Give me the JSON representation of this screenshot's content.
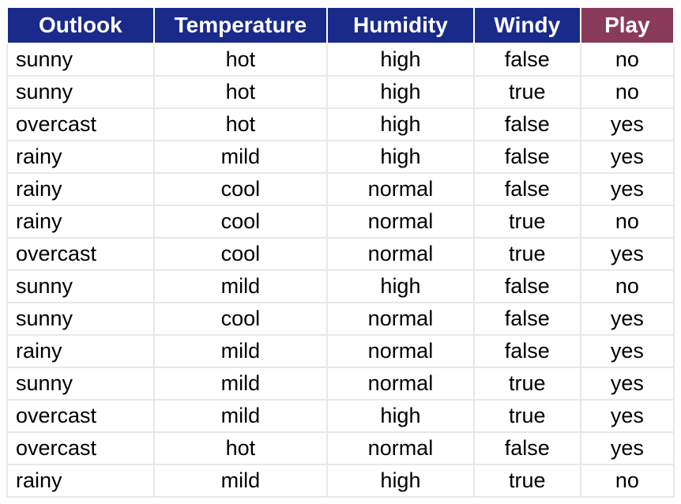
{
  "table": {
    "type": "table",
    "columns": [
      {
        "key": "outlook",
        "label": "Outlook",
        "header_bg": "#1a2a8a",
        "align": "left",
        "width_pct": 22
      },
      {
        "key": "temperature",
        "label": "Temperature",
        "header_bg": "#1a2a8a",
        "align": "center",
        "width_pct": 26
      },
      {
        "key": "humidity",
        "label": "Humidity",
        "header_bg": "#1a2a8a",
        "align": "center",
        "width_pct": 22
      },
      {
        "key": "windy",
        "label": "Windy",
        "header_bg": "#1a2a8a",
        "align": "center",
        "width_pct": 16
      },
      {
        "key": "play",
        "label": "Play",
        "header_bg": "#8a3a5a",
        "align": "center",
        "width_pct": 14
      }
    ],
    "rows": [
      [
        "sunny",
        "hot",
        "high",
        "false",
        "no"
      ],
      [
        "sunny",
        "hot",
        "high",
        "true",
        "no"
      ],
      [
        "overcast",
        "hot",
        "high",
        "false",
        "yes"
      ],
      [
        "rainy",
        "mild",
        "high",
        "false",
        "yes"
      ],
      [
        "rainy",
        "cool",
        "normal",
        "false",
        "yes"
      ],
      [
        "rainy",
        "cool",
        "normal",
        "true",
        "no"
      ],
      [
        "overcast",
        "cool",
        "normal",
        "true",
        "yes"
      ],
      [
        "sunny",
        "mild",
        "high",
        "false",
        "no"
      ],
      [
        "sunny",
        "cool",
        "normal",
        "false",
        "yes"
      ],
      [
        "rainy",
        "mild",
        "normal",
        "false",
        "yes"
      ],
      [
        "sunny",
        "mild",
        "normal",
        "true",
        "yes"
      ],
      [
        "overcast",
        "mild",
        "high",
        "true",
        "yes"
      ],
      [
        "overcast",
        "hot",
        "normal",
        "false",
        "yes"
      ],
      [
        "rainy",
        "mild",
        "high",
        "true",
        "no"
      ]
    ],
    "header_text_color": "#ffffff",
    "header_fontsize": 28,
    "body_fontsize": 27,
    "body_text_color": "#000000",
    "body_bg": "#ffffff",
    "grid_color": "#e8e8e8",
    "header_border_color": "#ffffff"
  }
}
